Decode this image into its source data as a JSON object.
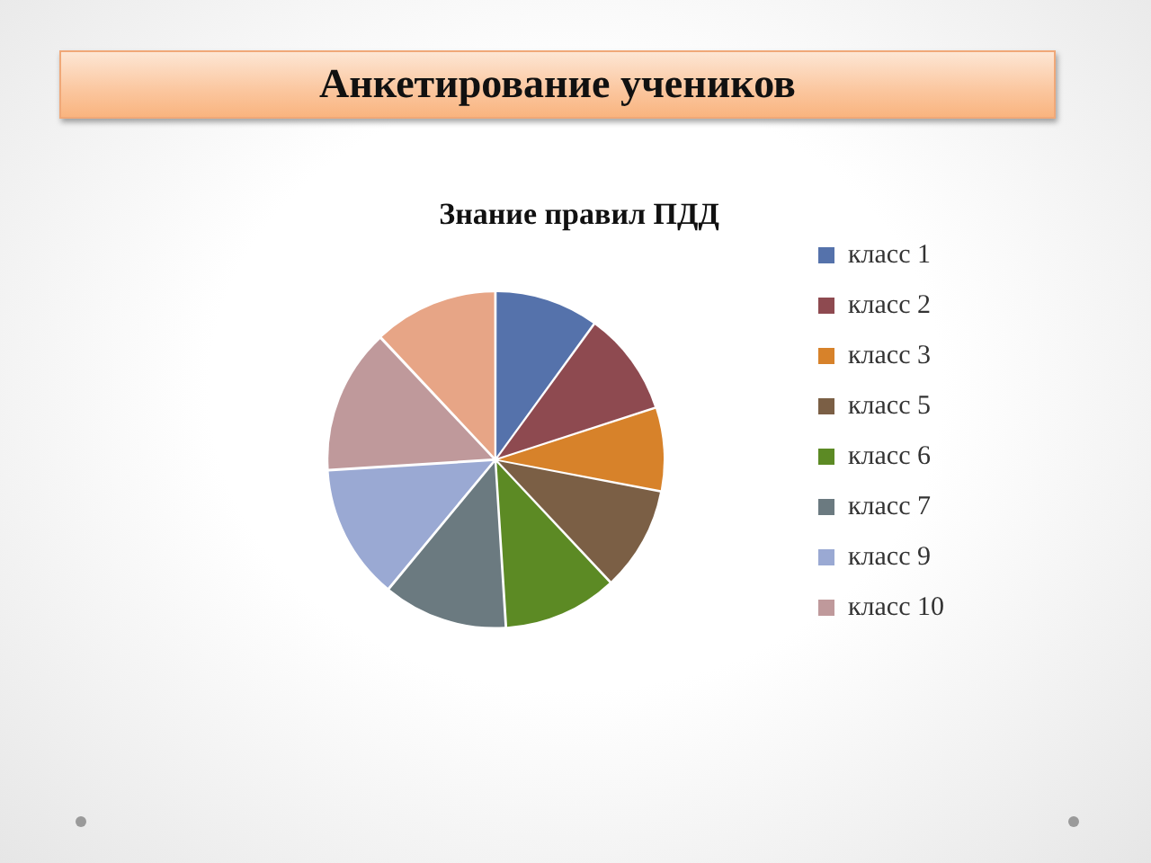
{
  "chart_data": {
    "type": "pie",
    "title": "Анкетирование учеников",
    "subtitle": "Знание правил ПДД",
    "categories": [
      "класс 1",
      "класс 2",
      "класс 3",
      "класс 5",
      "класс 6",
      "класс 7",
      "класс 9",
      "класс 10",
      null
    ],
    "values": [
      10,
      10,
      8,
      10,
      11,
      12,
      13,
      14,
      12
    ],
    "colors": [
      "#5572ab",
      "#8e4a50",
      "#d7822a",
      "#7b5f45",
      "#5c8a24",
      "#6b7a80",
      "#9aa9d3",
      "#bf999b",
      "#e7a586"
    ],
    "legend": "right"
  }
}
